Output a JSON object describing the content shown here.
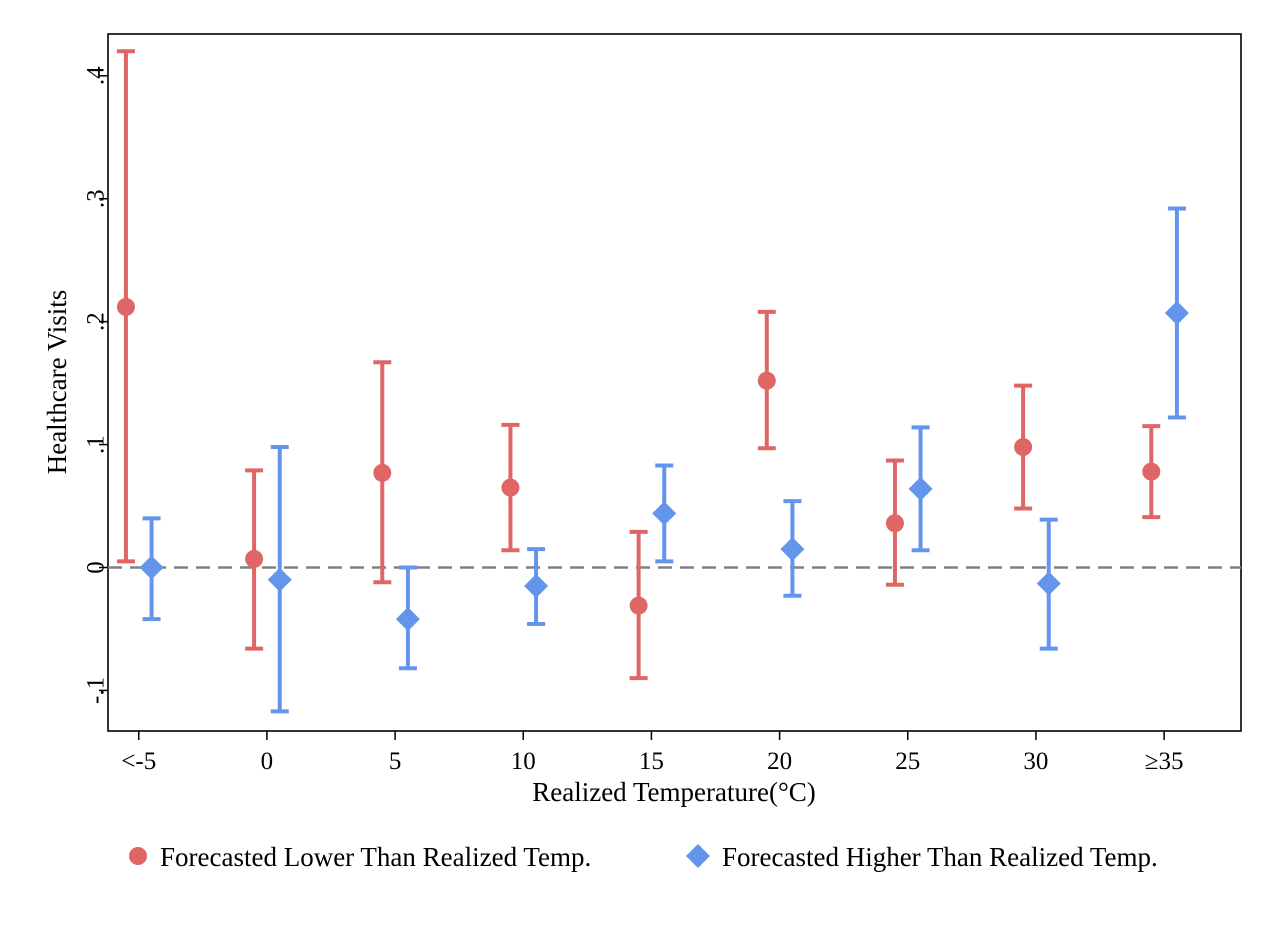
{
  "chart_data": {
    "type": "scatter",
    "subtype": "point-with-error-bars",
    "title": "",
    "xlabel": "Realized Temperature(°C)",
    "ylabel": "Healthcare Visits",
    "x_tick_labels": [
      "<-5",
      "0",
      "5",
      "10",
      "15",
      "20",
      "25",
      "30",
      "≥35"
    ],
    "x_tick_values": [
      -5,
      0,
      5,
      10,
      15,
      20,
      25,
      30,
      35
    ],
    "y_ticks": [
      {
        "value": -0.1,
        "label": "-.1"
      },
      {
        "value": 0,
        "label": "0"
      },
      {
        "value": 0.1,
        "label": ".1"
      },
      {
        "value": 0.2,
        "label": ".2"
      },
      {
        "value": 0.3,
        "label": ".3"
      },
      {
        "value": 0.4,
        "label": ".4"
      }
    ],
    "xlim": [
      -6.2,
      38.0
    ],
    "ylim": [
      -0.133,
      0.434
    ],
    "reference_line": {
      "y": 0,
      "style": "dashed",
      "color": "#808080"
    },
    "grid": false,
    "legend_position": "bottom",
    "series": [
      {
        "name": "Forecasted Lower Than Realized Temp.",
        "marker": "circle",
        "color": "#E06666",
        "points": [
          {
            "x": -5.5,
            "y": 0.212,
            "lo": 0.005,
            "hi": 0.42
          },
          {
            "x": -0.5,
            "y": 0.007,
            "lo": -0.066,
            "hi": 0.079
          },
          {
            "x": 4.5,
            "y": 0.077,
            "lo": -0.012,
            "hi": 0.167
          },
          {
            "x": 9.5,
            "y": 0.065,
            "lo": 0.014,
            "hi": 0.116
          },
          {
            "x": 14.5,
            "y": -0.031,
            "lo": -0.09,
            "hi": 0.029
          },
          {
            "x": 19.5,
            "y": 0.152,
            "lo": 0.097,
            "hi": 0.208
          },
          {
            "x": 24.5,
            "y": 0.036,
            "lo": -0.014,
            "hi": 0.087
          },
          {
            "x": 29.5,
            "y": 0.098,
            "lo": 0.048,
            "hi": 0.148
          },
          {
            "x": 34.5,
            "y": 0.078,
            "lo": 0.041,
            "hi": 0.115
          }
        ]
      },
      {
        "name": "Forecasted Higher Than Realized Temp.",
        "marker": "diamond",
        "color": "#6495ED",
        "points": [
          {
            "x": -4.5,
            "y": 0.0,
            "lo": -0.042,
            "hi": 0.04
          },
          {
            "x": 0.5,
            "y": -0.01,
            "lo": -0.117,
            "hi": 0.098
          },
          {
            "x": 5.5,
            "y": -0.042,
            "lo": -0.082,
            "hi": 0.0
          },
          {
            "x": 10.5,
            "y": -0.015,
            "lo": -0.046,
            "hi": 0.015
          },
          {
            "x": 15.5,
            "y": 0.044,
            "lo": 0.005,
            "hi": 0.083
          },
          {
            "x": 20.5,
            "y": 0.015,
            "lo": -0.023,
            "hi": 0.054
          },
          {
            "x": 25.5,
            "y": 0.064,
            "lo": 0.014,
            "hi": 0.114
          },
          {
            "x": 30.5,
            "y": -0.013,
            "lo": -0.066,
            "hi": 0.039
          },
          {
            "x": 35.5,
            "y": 0.207,
            "lo": 0.122,
            "hi": 0.292
          }
        ]
      }
    ]
  }
}
